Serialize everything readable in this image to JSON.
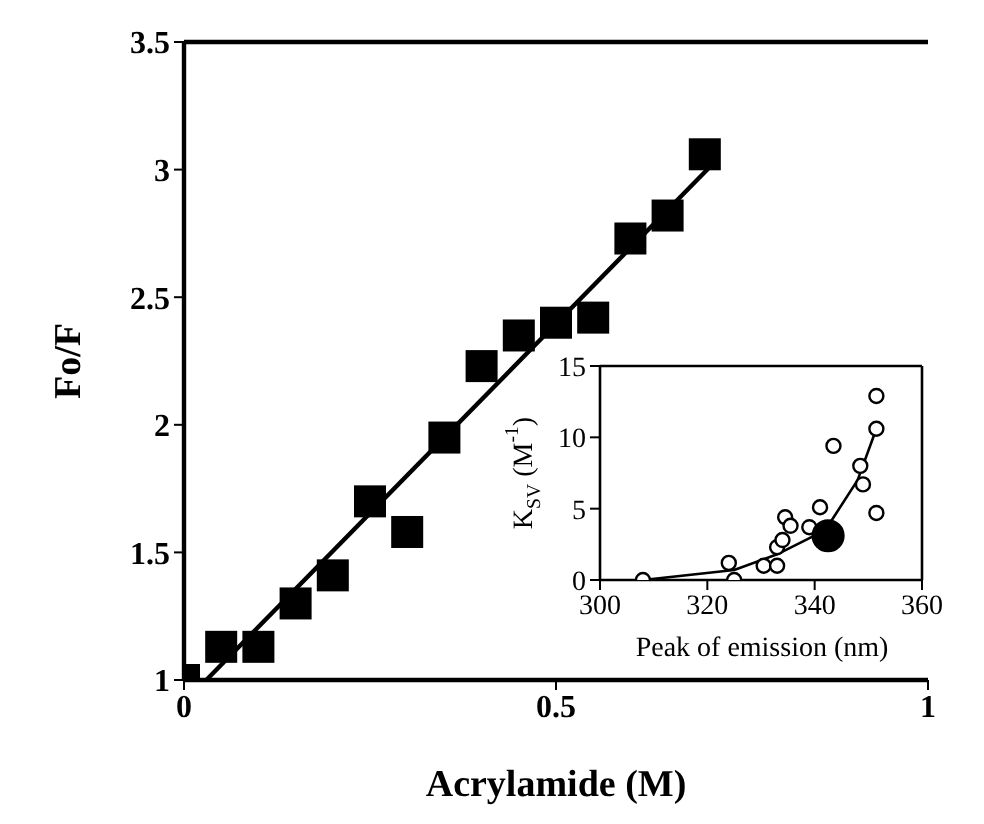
{
  "chart_data": [
    {
      "type": "scatter",
      "xlabel": "Acrylamide (M)",
      "ylabel": "Fo/F",
      "xlim": [
        0,
        1
      ],
      "xticks": [
        0,
        0.5,
        1
      ],
      "ylim": [
        1,
        3.5
      ],
      "yticks": [
        1,
        1.5,
        2,
        2.5,
        3,
        3.5
      ],
      "series": [
        {
          "marker": "square",
          "color": "#000000",
          "x": [
            0,
            0.05,
            0.1,
            0.15,
            0.2,
            0.25,
            0.3,
            0.35,
            0.4,
            0.45,
            0.5,
            0.55,
            0.6,
            0.65,
            0.7
          ],
          "values": [
            1,
            1.13,
            1.13,
            1.3,
            1.41,
            1.7,
            1.58,
            1.95,
            2.23,
            2.35,
            2.4,
            2.42,
            2.73,
            2.82,
            3.06
          ]
        },
        {
          "type": "line",
          "marker": "none",
          "color": "#000000",
          "x": [
            0.03,
            0.71
          ],
          "values": [
            1,
            3.02
          ]
        }
      ]
    },
    {
      "type": "scatter",
      "xlabel": "Peak of emission (nm)",
      "ylabel": "K$_{SV}$ (M$^{-1}$)",
      "xlim": [
        300,
        360
      ],
      "xticks": [
        300,
        320,
        340,
        360
      ],
      "ylim": [
        0,
        15
      ],
      "yticks": [
        0,
        5,
        10,
        15
      ],
      "series": [
        {
          "marker": "circle",
          "color": "#000000",
          "x": [
            308,
            324,
            325,
            330.5,
            333,
            333,
            334,
            334.5,
            335.5,
            339,
            341,
            343.5,
            348.5,
            349,
            351.5,
            351.5,
            351.5
          ],
          "values": [
            0,
            1.2,
            0,
            1,
            1,
            2.3,
            2.8,
            4.4,
            3.8,
            3.7,
            5.1,
            9.4,
            8,
            6.7,
            12.9,
            10.6,
            4.7
          ]
        },
        {
          "marker": "circle",
          "color": "#000000",
          "x": [
            342.5
          ],
          "values": [
            3.1
          ]
        },
        {
          "type": "line",
          "marker": "none",
          "color": "#000000",
          "x": [
            308,
            325,
            333,
            342,
            348,
            351.5
          ],
          "values": [
            0,
            0.7,
            1.8,
            3.5,
            7,
            10.6
          ]
        }
      ]
    }
  ]
}
